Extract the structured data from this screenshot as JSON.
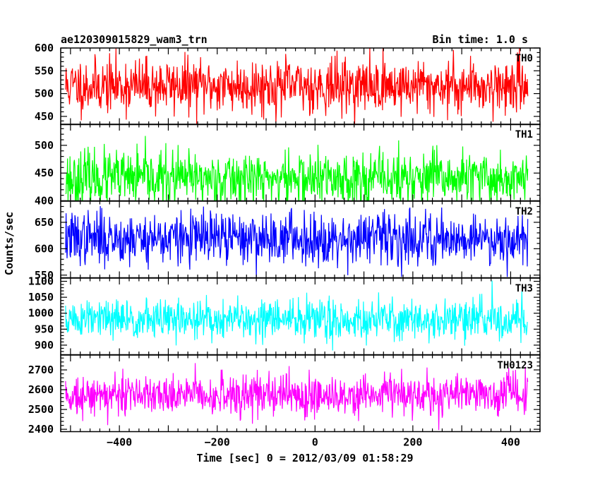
{
  "header": {
    "title": "ae120309015829_wam3_trn",
    "bin_time": "Bin time: 1.0 s"
  },
  "chart_data": {
    "type": "line",
    "title": "ae120309015829_wam3_trn",
    "xlabel": "Time [sec] 0 = 2012/03/09 01:58:29",
    "ylabel": "Counts/sec",
    "xlim": [
      -520,
      460
    ],
    "x_ticks": [
      -400,
      -200,
      0,
      200,
      400
    ],
    "x_tick_labels": [
      "−400",
      "−200",
      "0",
      "200",
      "400"
    ],
    "x_data_range": [
      -510,
      435
    ],
    "bin_time_s": 1.0,
    "grid": false,
    "panels": [
      {
        "name": "TH0",
        "color": "#ff0000",
        "ylim": [
          432,
          600
        ],
        "y_ticks": [
          450,
          500,
          550,
          600
        ],
        "mean": 517,
        "spread": 30,
        "seed": 11
      },
      {
        "name": "TH1",
        "color": "#00ff00",
        "ylim": [
          400,
          538
        ],
        "y_ticks": [
          400,
          450,
          500
        ],
        "mean": 440,
        "spread": 25,
        "seed": 23
      },
      {
        "name": "TH2",
        "color": "#0000ff",
        "ylim": [
          545,
          690
        ],
        "y_ticks": [
          550,
          600,
          650
        ],
        "mean": 620,
        "spread": 25,
        "seed": 37
      },
      {
        "name": "TH3",
        "color": "#00ffff",
        "ylim": [
          870,
          1110
        ],
        "y_ticks": [
          900,
          950,
          1000,
          1050,
          1100
        ],
        "mean": 980,
        "spread": 32,
        "seed": 51
      },
      {
        "name": "TH0123",
        "color": "#ff00ff",
        "ylim": [
          2388,
          2775
        ],
        "y_ticks": [
          2400,
          2500,
          2600,
          2700
        ],
        "mean": 2575,
        "spread": 52,
        "seed": 73
      }
    ]
  }
}
